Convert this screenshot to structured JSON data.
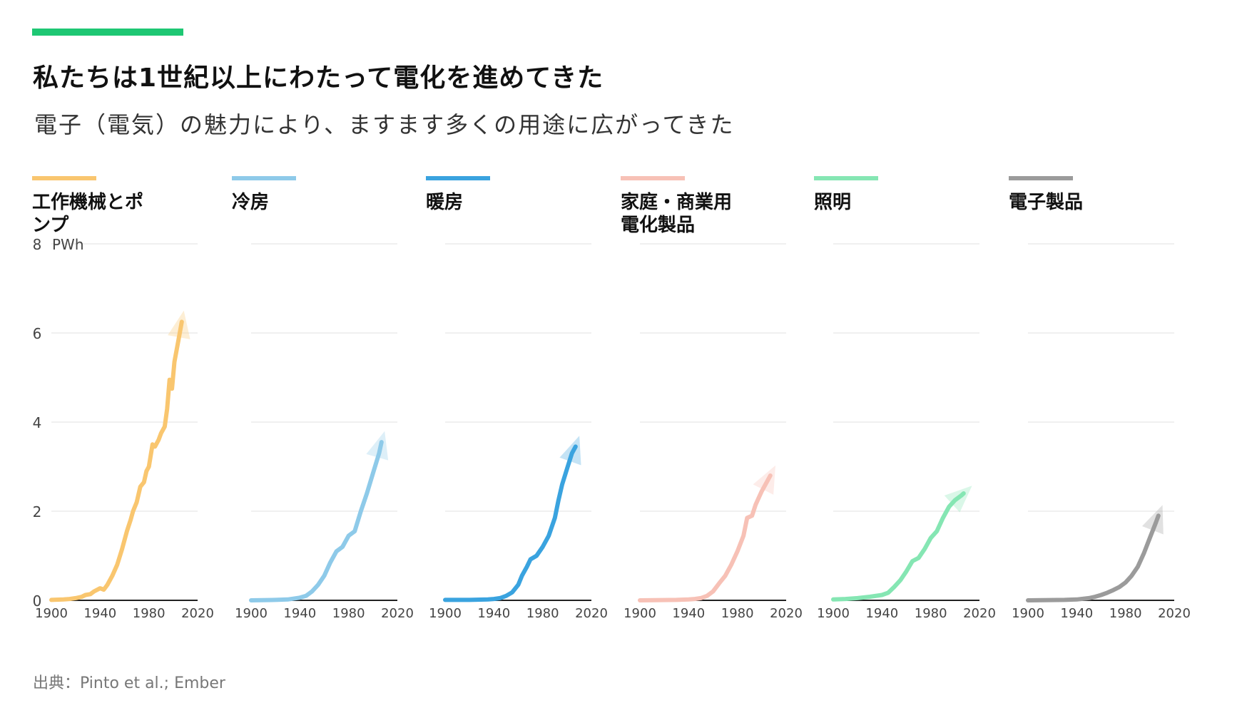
{
  "header": {
    "accent_color": "#1ec773",
    "title": "私たちは1世紀以上にわたって電化を進めてきた",
    "subtitle": "電子（電気）の魅力により、ますます多くの用途に広がってきた"
  },
  "footer": {
    "source": "出典：Pinto et al.; Ember"
  },
  "chart_data": {
    "type": "line",
    "unit_label": "PWh",
    "x_ticks": [
      "1900",
      "1940",
      "1980",
      "2020"
    ],
    "y_ticks": [
      "0",
      "2",
      "4",
      "6",
      "8"
    ],
    "xlim": [
      1900,
      2020
    ],
    "ylim": [
      0,
      8
    ],
    "grid": true,
    "panels": [
      {
        "title": "工作機械とポンプ",
        "color": "#f9c66f",
        "points": [
          [
            1900,
            0.01
          ],
          [
            1910,
            0.02
          ],
          [
            1915,
            0.03
          ],
          [
            1920,
            0.05
          ],
          [
            1925,
            0.08
          ],
          [
            1928,
            0.12
          ],
          [
            1932,
            0.14
          ],
          [
            1935,
            0.2
          ],
          [
            1940,
            0.27
          ],
          [
            1943,
            0.24
          ],
          [
            1946,
            0.35
          ],
          [
            1950,
            0.55
          ],
          [
            1954,
            0.8
          ],
          [
            1958,
            1.15
          ],
          [
            1962,
            1.55
          ],
          [
            1965,
            1.8
          ],
          [
            1967,
            2.0
          ],
          [
            1970,
            2.2
          ],
          [
            1973,
            2.55
          ],
          [
            1976,
            2.65
          ],
          [
            1978,
            2.9
          ],
          [
            1980,
            3.0
          ],
          [
            1983,
            3.5
          ],
          [
            1985,
            3.45
          ],
          [
            1988,
            3.6
          ],
          [
            1990,
            3.75
          ],
          [
            1993,
            3.9
          ],
          [
            1995,
            4.3
          ],
          [
            1997,
            4.95
          ],
          [
            1999,
            4.75
          ],
          [
            2001,
            5.35
          ],
          [
            2004,
            5.8
          ],
          [
            2006,
            6.1
          ],
          [
            2007,
            6.25
          ]
        ]
      },
      {
        "title": "冷房",
        "color": "#8ecae9",
        "points": [
          [
            1900,
            0
          ],
          [
            1920,
            0.01
          ],
          [
            1930,
            0.02
          ],
          [
            1940,
            0.06
          ],
          [
            1945,
            0.1
          ],
          [
            1950,
            0.2
          ],
          [
            1955,
            0.35
          ],
          [
            1960,
            0.55
          ],
          [
            1965,
            0.85
          ],
          [
            1970,
            1.1
          ],
          [
            1975,
            1.2
          ],
          [
            1980,
            1.45
          ],
          [
            1985,
            1.55
          ],
          [
            1990,
            2.0
          ],
          [
            1995,
            2.4
          ],
          [
            2000,
            2.85
          ],
          [
            2005,
            3.3
          ],
          [
            2007,
            3.55
          ]
        ]
      },
      {
        "title": "暖房",
        "color": "#3aa3df",
        "points": [
          [
            1900,
            0.01
          ],
          [
            1920,
            0.01
          ],
          [
            1935,
            0.02
          ],
          [
            1940,
            0.03
          ],
          [
            1945,
            0.05
          ],
          [
            1950,
            0.1
          ],
          [
            1955,
            0.18
          ],
          [
            1960,
            0.35
          ],
          [
            1963,
            0.55
          ],
          [
            1967,
            0.75
          ],
          [
            1970,
            0.92
          ],
          [
            1975,
            1.0
          ],
          [
            1980,
            1.2
          ],
          [
            1985,
            1.45
          ],
          [
            1990,
            1.85
          ],
          [
            1993,
            2.25
          ],
          [
            1996,
            2.6
          ],
          [
            2000,
            2.95
          ],
          [
            2004,
            3.3
          ],
          [
            2007,
            3.45
          ]
        ]
      },
      {
        "title": "家庭・商業用電化製品",
        "color": "#f7c1b6",
        "points": [
          [
            1900,
            0
          ],
          [
            1930,
            0.01
          ],
          [
            1940,
            0.02
          ],
          [
            1945,
            0.03
          ],
          [
            1950,
            0.05
          ],
          [
            1955,
            0.1
          ],
          [
            1960,
            0.2
          ],
          [
            1965,
            0.38
          ],
          [
            1970,
            0.55
          ],
          [
            1975,
            0.8
          ],
          [
            1980,
            1.1
          ],
          [
            1985,
            1.45
          ],
          [
            1988,
            1.85
          ],
          [
            1992,
            1.9
          ],
          [
            1995,
            2.15
          ],
          [
            2000,
            2.45
          ],
          [
            2005,
            2.7
          ],
          [
            2007,
            2.8
          ]
        ]
      },
      {
        "title": "照明",
        "color": "#85e6b3",
        "points": [
          [
            1900,
            0.02
          ],
          [
            1910,
            0.03
          ],
          [
            1920,
            0.05
          ],
          [
            1930,
            0.08
          ],
          [
            1940,
            0.12
          ],
          [
            1945,
            0.17
          ],
          [
            1950,
            0.3
          ],
          [
            1955,
            0.45
          ],
          [
            1960,
            0.65
          ],
          [
            1965,
            0.88
          ],
          [
            1970,
            0.95
          ],
          [
            1975,
            1.15
          ],
          [
            1980,
            1.4
          ],
          [
            1985,
            1.55
          ],
          [
            1990,
            1.85
          ],
          [
            1995,
            2.1
          ],
          [
            2000,
            2.25
          ],
          [
            2005,
            2.35
          ],
          [
            2007,
            2.4
          ]
        ]
      },
      {
        "title": "電子製品",
        "color": "#9b9b9b",
        "points": [
          [
            1900,
            0
          ],
          [
            1930,
            0.01
          ],
          [
            1940,
            0.02
          ],
          [
            1950,
            0.05
          ],
          [
            1955,
            0.08
          ],
          [
            1960,
            0.12
          ],
          [
            1965,
            0.17
          ],
          [
            1970,
            0.23
          ],
          [
            1975,
            0.3
          ],
          [
            1980,
            0.4
          ],
          [
            1985,
            0.55
          ],
          [
            1990,
            0.75
          ],
          [
            1995,
            1.05
          ],
          [
            2000,
            1.4
          ],
          [
            2005,
            1.75
          ],
          [
            2007,
            1.9
          ]
        ]
      }
    ]
  }
}
